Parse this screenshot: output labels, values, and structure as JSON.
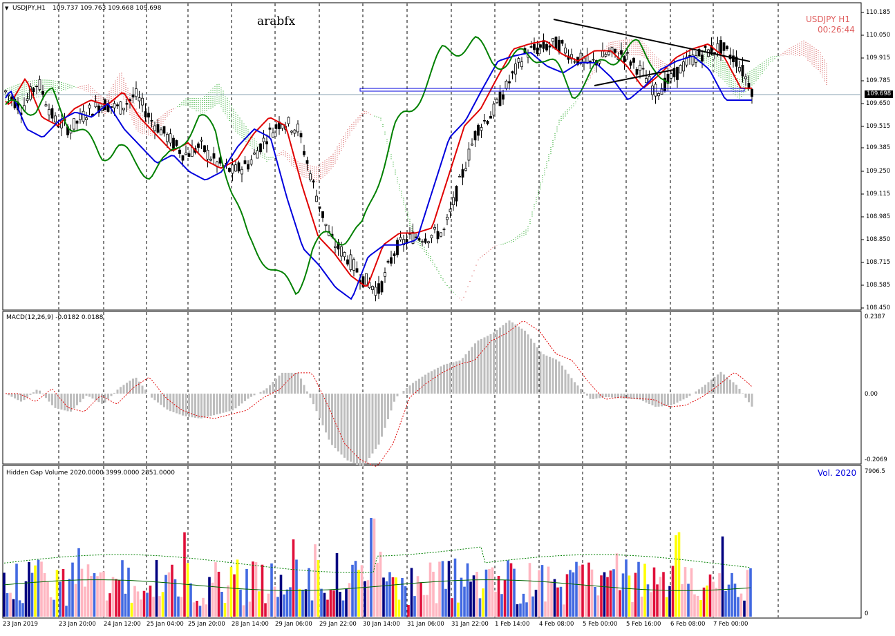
{
  "chart_header": {
    "symbol_tf": "USDJPY,H1",
    "ohlc": "109.737 109.763 109.668 109.698",
    "watermark": "arabfx",
    "corner_symbol": "USDJPY  H1",
    "countdown": "00:26:44",
    "current_price_label": "109.698"
  },
  "macd_header": {
    "label": "MACD(12,26,9) -0.0182 0.0188",
    "scale_top": "0.2387",
    "scale_mid": "0.00",
    "scale_bottom": "-0.2069"
  },
  "volume_header": {
    "label": "Hidden Gap Volume 2020.0000 3999.0000 2851.0000",
    "scale_top": "7906.5",
    "scale_bottom": "0",
    "corner": "Vol.  2020"
  },
  "price_axis": [
    "110.185",
    "110.050",
    "109.915",
    "109.785",
    "109.650",
    "109.515",
    "109.385",
    "109.250",
    "109.115",
    "108.985",
    "108.850",
    "108.715",
    "108.585",
    "108.450"
  ],
  "time_axis": [
    "23 Jan 2019",
    "23 Jan 20:00",
    "24 Jan 12:00",
    "25 Jan 04:00",
    "25 Jan 20:00",
    "28 Jan 14:00",
    "29 Jan 06:00",
    "29 Jan 22:00",
    "30 Jan 14:00",
    "31 Jan 06:00",
    "31 Jan 22:00",
    "1 Feb 14:00",
    "4 Feb 08:00",
    "5 Feb 00:00",
    "5 Feb 16:00",
    "6 Feb 08:00",
    "7 Feb 00:00"
  ],
  "colors": {
    "tenkan": "#e00000",
    "kijun": "#0000dd",
    "chikou": "#008000",
    "cloud_bull": "#009900",
    "cloud_bear": "#cc3333",
    "macd_hist": "#bdbdbd",
    "macd_signal": "#e00000",
    "vol_navy": "#000080",
    "vol_blue": "#4169e1",
    "vol_red": "#e0103a",
    "vol_pink": "#ffb6c1",
    "vol_yellow": "#ffff00"
  },
  "chart_data": {
    "type": "line",
    "symbol": "USDJPY",
    "timeframe": "H1",
    "ylim": [
      108.45,
      110.185
    ],
    "series": [
      {
        "values": [
          109.72,
          109.62,
          109.78,
          109.55,
          109.5,
          109.6,
          109.65,
          109.62,
          109.7,
          109.55,
          109.45,
          109.35,
          109.4,
          109.3,
          109.25,
          109.3,
          109.45,
          109.55,
          109.5,
          109.15,
          108.85,
          108.75,
          108.62,
          108.55,
          108.8,
          108.87,
          108.87,
          108.9,
          109.2,
          109.5,
          109.6,
          109.78,
          109.95,
          109.98,
          110.0,
          109.92,
          109.88,
          109.94,
          109.94,
          109.85,
          109.72,
          109.8,
          109.9,
          109.95,
          109.98,
          109.9,
          109.72
        ]
      }
    ],
    "macd": {
      "ylim": [
        -0.2069,
        0.2387
      ]
    },
    "volume": {
      "ylim": [
        0,
        7906.5
      ]
    }
  }
}
